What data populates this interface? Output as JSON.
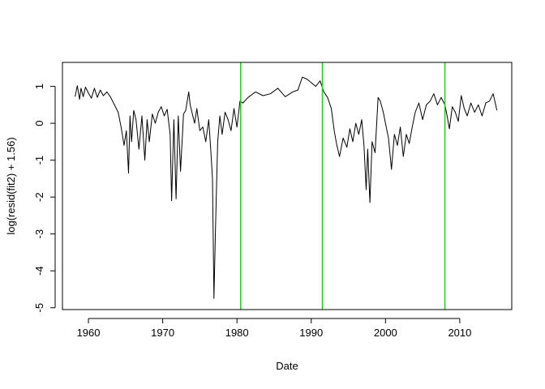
{
  "chart_data": {
    "type": "line",
    "title": "",
    "xlabel": "Date",
    "ylabel": "log(resid(fit2) + 1.56)",
    "xlim": [
      1956.5,
      2017.0
    ],
    "ylim": [
      -5.05,
      1.65
    ],
    "x_ticks": [
      1960,
      1970,
      1980,
      1990,
      2000,
      2010
    ],
    "x_tick_labels": [
      "1960",
      "1970",
      "1980",
      "1990",
      "2000",
      "2010"
    ],
    "y_ticks": [
      1,
      0,
      -1,
      -2,
      -3,
      -4,
      -5
    ],
    "y_tick_labels": [
      "1",
      "0",
      "-1",
      "-2",
      "-3",
      "-4",
      "-5"
    ],
    "grid": false,
    "legend": "none",
    "series": [
      {
        "line_color": "#000000",
        "x": [
          1958.2,
          1958.5,
          1958.8,
          1959.0,
          1959.3,
          1959.6,
          1960.0,
          1960.4,
          1960.8,
          1961.2,
          1961.6,
          1962.0,
          1962.5,
          1963.0,
          1963.5,
          1964.0,
          1964.4,
          1964.8,
          1965.1,
          1965.4,
          1965.6,
          1965.8,
          1966.1,
          1966.4,
          1966.8,
          1967.2,
          1967.6,
          1967.9,
          1968.2,
          1968.6,
          1969.0,
          1969.4,
          1969.8,
          1970.2,
          1970.6,
          1971.0,
          1971.2,
          1971.5,
          1971.8,
          1972.1,
          1972.4,
          1972.8,
          1973.1,
          1973.5,
          1973.7,
          1974.0,
          1974.3,
          1974.6,
          1975.0,
          1975.4,
          1975.8,
          1976.2,
          1976.5,
          1976.7,
          1976.9,
          1977.1,
          1977.4,
          1977.7,
          1978.0,
          1978.4,
          1978.8,
          1979.2,
          1979.6,
          1980.0,
          1980.4,
          1980.8,
          1981.5,
          1982.5,
          1983.5,
          1984.5,
          1985.5,
          1986.5,
          1987.5,
          1988.2,
          1988.8,
          1989.4,
          1990.0,
          1990.6,
          1991.2,
          1991.7,
          1992.2,
          1992.7,
          1993.1,
          1993.4,
          1993.8,
          1994.3,
          1994.8,
          1995.2,
          1995.6,
          1996.0,
          1996.4,
          1996.8,
          1997.1,
          1997.4,
          1997.6,
          1997.9,
          1998.2,
          1998.6,
          1999.0,
          1999.3,
          1999.7,
          2000.0,
          2000.4,
          2000.8,
          2001.2,
          2001.6,
          2002.0,
          2002.4,
          2002.8,
          2003.2,
          2003.6,
          2004.0,
          2004.5,
          2005.0,
          2005.5,
          2006.0,
          2006.5,
          2007.0,
          2007.5,
          2008.0,
          2008.3,
          2008.6,
          2009.0,
          2009.4,
          2009.8,
          2010.2,
          2010.6,
          2011.0,
          2011.5,
          2012.0,
          2012.5,
          2013.0,
          2013.5,
          2014.0,
          2014.5,
          2015.0
        ],
        "y": [
          0.72,
          1.02,
          0.65,
          0.95,
          0.72,
          0.98,
          0.82,
          0.68,
          0.95,
          0.7,
          0.9,
          0.75,
          0.85,
          0.7,
          0.5,
          0.3,
          -0.1,
          -0.6,
          -0.2,
          -1.35,
          0.2,
          -0.5,
          0.35,
          0.1,
          -0.7,
          0.2,
          -1.0,
          0.1,
          -0.5,
          0.25,
          0.0,
          0.3,
          0.45,
          0.2,
          0.38,
          -0.3,
          -2.1,
          0.1,
          -2.05,
          0.2,
          -1.3,
          0.25,
          0.35,
          0.85,
          0.5,
          0.25,
          0.0,
          0.4,
          -0.2,
          -0.1,
          -0.5,
          0.1,
          -0.8,
          -1.5,
          -4.75,
          -2.95,
          -0.5,
          0.2,
          -0.3,
          0.3,
          0.1,
          -0.2,
          0.4,
          -0.1,
          0.6,
          0.55,
          0.7,
          0.85,
          0.75,
          0.8,
          0.95,
          0.72,
          0.85,
          0.9,
          1.25,
          1.2,
          1.1,
          1.0,
          1.15,
          0.85,
          0.7,
          0.4,
          -0.2,
          -0.55,
          -0.9,
          -0.4,
          -0.65,
          -0.15,
          -0.5,
          0.0,
          -0.3,
          0.1,
          -0.6,
          -1.8,
          -0.7,
          -2.15,
          -0.5,
          -0.8,
          0.7,
          0.6,
          0.3,
          0.0,
          -0.4,
          -1.25,
          -0.3,
          -0.6,
          -0.1,
          -0.9,
          -0.3,
          -0.55,
          -0.1,
          0.3,
          0.55,
          0.1,
          0.5,
          0.6,
          0.8,
          0.5,
          0.7,
          0.5,
          0.2,
          -0.15,
          0.45,
          0.3,
          0.05,
          0.75,
          0.4,
          0.2,
          0.55,
          0.3,
          0.5,
          0.2,
          0.55,
          0.6,
          0.8,
          0.35
        ]
      },
      {
        "type": "vline",
        "line_color": "#22cc22",
        "x": [
          1980.5,
          1991.5,
          2008.0
        ]
      }
    ]
  }
}
